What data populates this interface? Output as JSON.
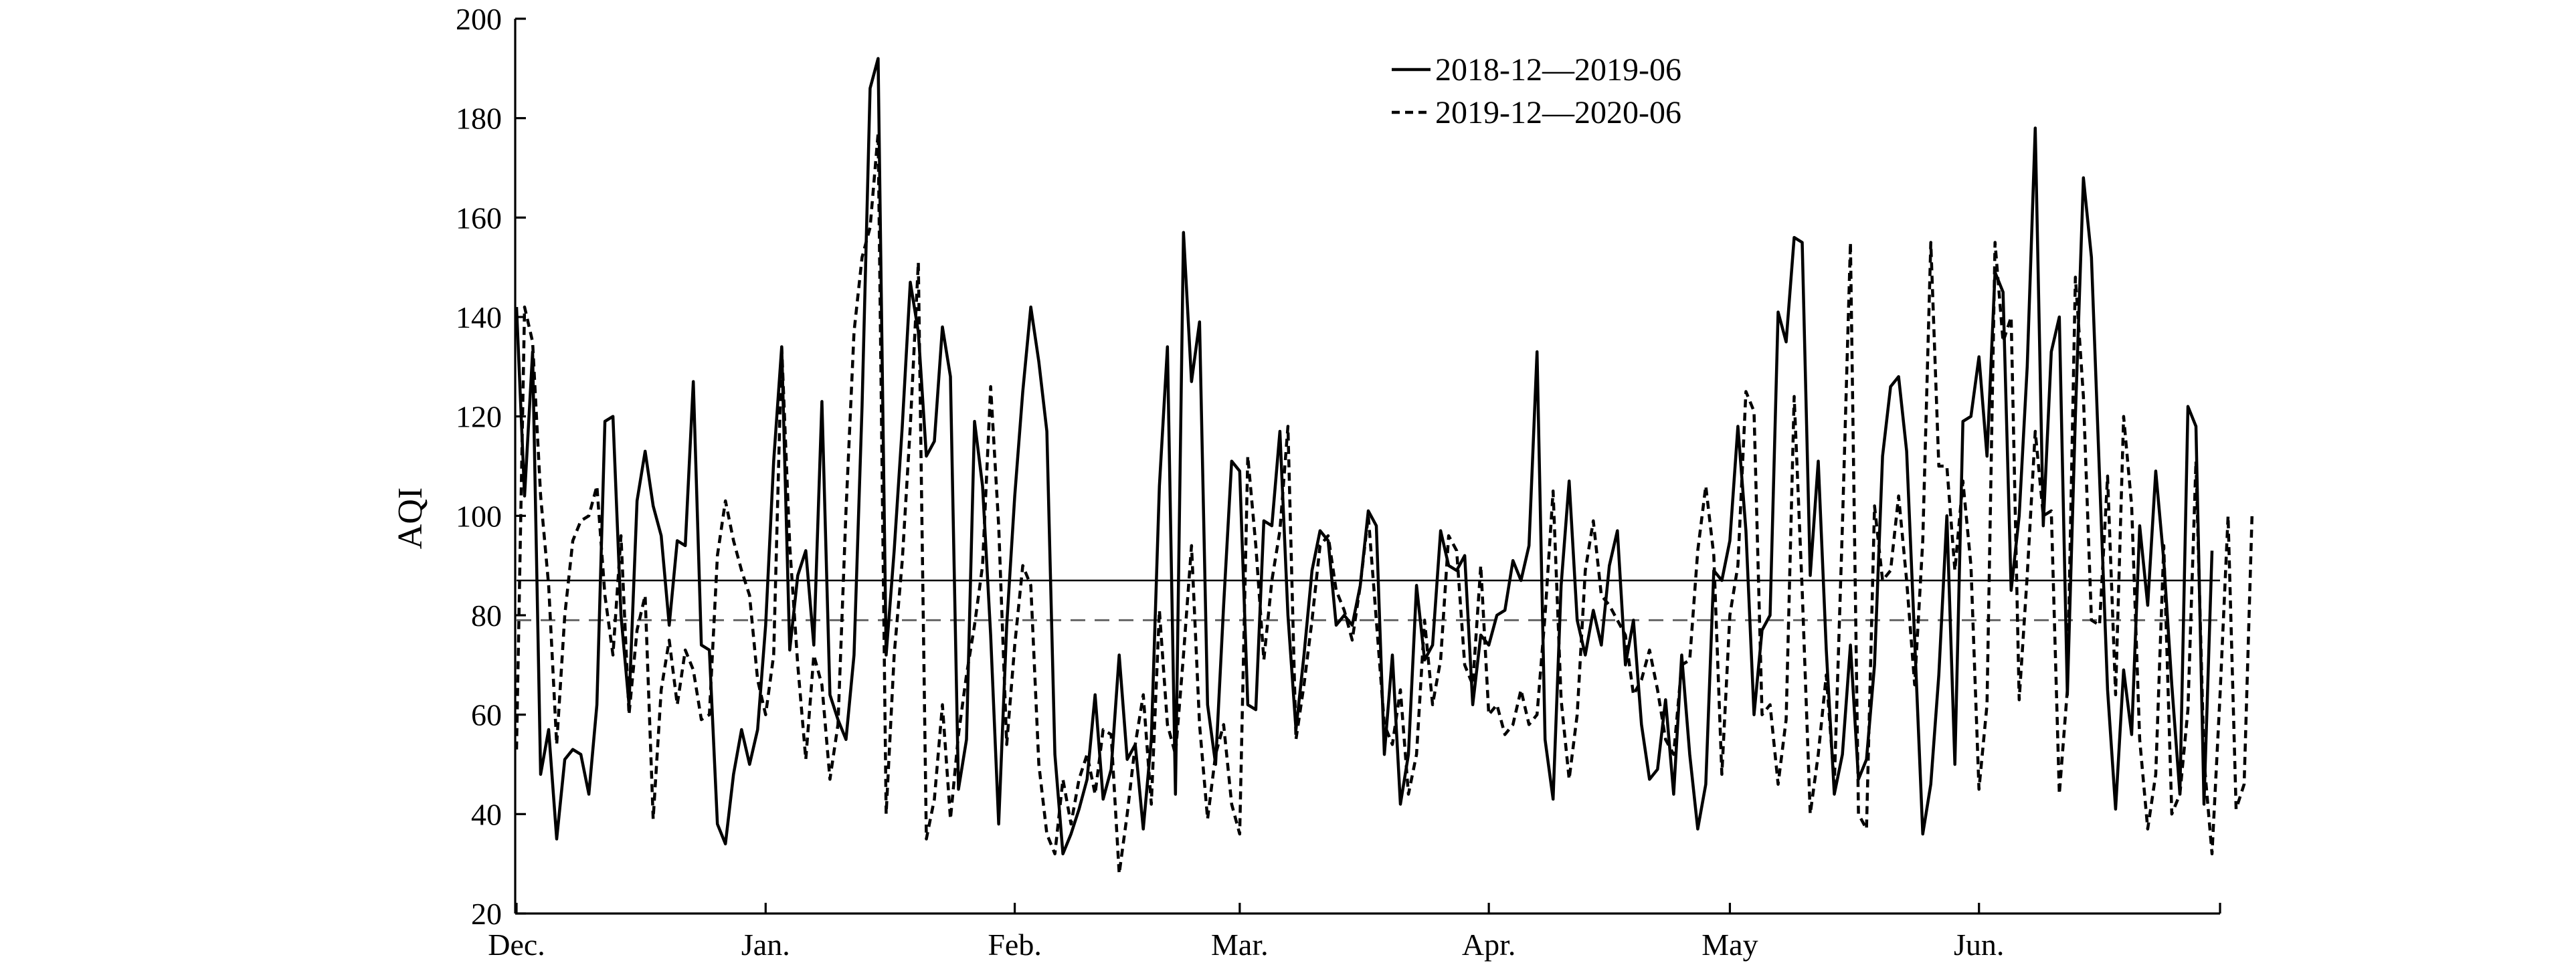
{
  "chart_data": {
    "type": "line",
    "ylabel": "AQI",
    "xlabel": "",
    "ylim": [
      20,
      200
    ],
    "yticks": [
      20,
      40,
      60,
      80,
      100,
      120,
      140,
      160,
      180,
      200
    ],
    "xlim": [
      0,
      212
    ],
    "month_ticks": [
      {
        "x": 0,
        "label": "Dec."
      },
      {
        "x": 31,
        "label": "Jan."
      },
      {
        "x": 62,
        "label": "Feb."
      },
      {
        "x": 90,
        "label": "Mar."
      },
      {
        "x": 121,
        "label": "Apr."
      },
      {
        "x": 151,
        "label": "May"
      },
      {
        "x": 182,
        "label": "Jun."
      }
    ],
    "legend_position": "top-center",
    "reference_lines": [
      {
        "style": "solid",
        "value": 87,
        "color": "#000000"
      },
      {
        "style": "dashed",
        "value": 79,
        "color": "#666666"
      }
    ],
    "series": [
      {
        "name": "2018-12—2019-06",
        "style": "solid",
        "color": "#000000",
        "values": [
          142,
          104,
          133,
          48,
          57,
          35,
          51,
          53,
          52,
          44,
          62,
          119,
          120,
          80,
          62,
          103,
          113,
          102,
          96,
          78,
          95,
          94,
          127,
          74,
          73,
          38,
          34,
          48,
          57,
          50,
          57,
          78,
          111,
          134,
          73,
          88,
          93,
          74,
          123,
          64,
          59,
          55,
          72,
          122,
          186,
          192,
          72,
          93,
          118,
          147,
          137,
          112,
          115,
          138,
          128,
          45,
          55,
          119,
          106,
          76,
          38,
          78,
          104,
          125,
          142,
          131,
          117,
          52,
          32,
          36,
          41,
          47,
          64,
          43,
          49,
          72,
          51,
          54,
          37,
          55,
          106,
          134,
          44,
          157,
          127,
          139,
          62,
          50,
          82,
          111,
          109,
          62,
          61,
          99,
          98,
          117,
          80,
          57,
          72,
          89,
          97,
          95,
          78,
          80,
          78,
          86,
          101,
          98,
          52,
          72,
          42,
          52,
          86,
          71,
          74,
          97,
          90,
          89,
          92,
          62,
          76,
          74,
          80,
          81,
          91,
          87,
          94,
          133,
          55,
          43,
          86,
          107,
          79,
          72,
          81,
          74,
          90,
          97,
          70,
          79,
          58,
          47,
          49,
          63,
          44,
          72,
          52,
          37,
          46,
          89,
          87,
          95,
          118,
          97,
          60,
          77,
          80,
          141,
          135,
          156,
          155,
          88,
          111,
          73,
          44,
          52,
          74,
          47,
          51,
          70,
          112,
          126,
          128,
          113,
          75,
          36,
          46,
          68,
          100,
          50,
          119,
          120,
          132,
          112,
          149,
          145,
          85,
          100,
          130,
          178,
          98,
          133,
          140,
          64,
          120,
          168,
          152,
          108,
          65,
          41,
          69,
          56,
          98,
          82,
          109,
          91,
          66,
          44,
          122,
          118,
          42,
          93
        ]
      },
      {
        "name": "2019-12—2020-06",
        "style": "dashed",
        "color": "#000000",
        "values": [
          53,
          142,
          135,
          104,
          86,
          54,
          80,
          95,
          99,
          100,
          106,
          84,
          72,
          96,
          60,
          77,
          84,
          39,
          65,
          75,
          62,
          73,
          69,
          59,
          60,
          92,
          103,
          95,
          89,
          84,
          67,
          60,
          72,
          134,
          94,
          70,
          51,
          72,
          66,
          47,
          58,
          101,
          137,
          152,
          158,
          177,
          40,
          72,
          91,
          118,
          151,
          35,
          43,
          62,
          39,
          56,
          68,
          78,
          90,
          126,
          98,
          54,
          74,
          90,
          86,
          50,
          36,
          32,
          47,
          38,
          47,
          52,
          44,
          57,
          56,
          28,
          40,
          54,
          64,
          42,
          81,
          58,
          52,
          72,
          94,
          58,
          39,
          52,
          58,
          42,
          36,
          112,
          94,
          71,
          87,
          97,
          118,
          55,
          66,
          79,
          94,
          96,
          85,
          81,
          75,
          86,
          100,
          79,
          58,
          54,
          65,
          44,
          52,
          79,
          62,
          71,
          96,
          93,
          70,
          66,
          90,
          60,
          62,
          56,
          58,
          65,
          58,
          60,
          80,
          105,
          63,
          47,
          60,
          89,
          99,
          84,
          82,
          79,
          76,
          64,
          67,
          73,
          65,
          55,
          52,
          70,
          71,
          93,
          106,
          92,
          48,
          80,
          90,
          125,
          121,
          60,
          62,
          46,
          59,
          124,
          85,
          40,
          52,
          68,
          46,
          98,
          155,
          40,
          37,
          102,
          87,
          89,
          104,
          87,
          66,
          95,
          155,
          110,
          110,
          89,
          107,
          90,
          45,
          62,
          155,
          135,
          140,
          63,
          88,
          117,
          100,
          101,
          44,
          65,
          148,
          124,
          79,
          78,
          108,
          64,
          120,
          102,
          55,
          37,
          48,
          94,
          40,
          44,
          61,
          111,
          51,
          32,
          64,
          100,
          41,
          46,
          101
        ]
      }
    ]
  }
}
